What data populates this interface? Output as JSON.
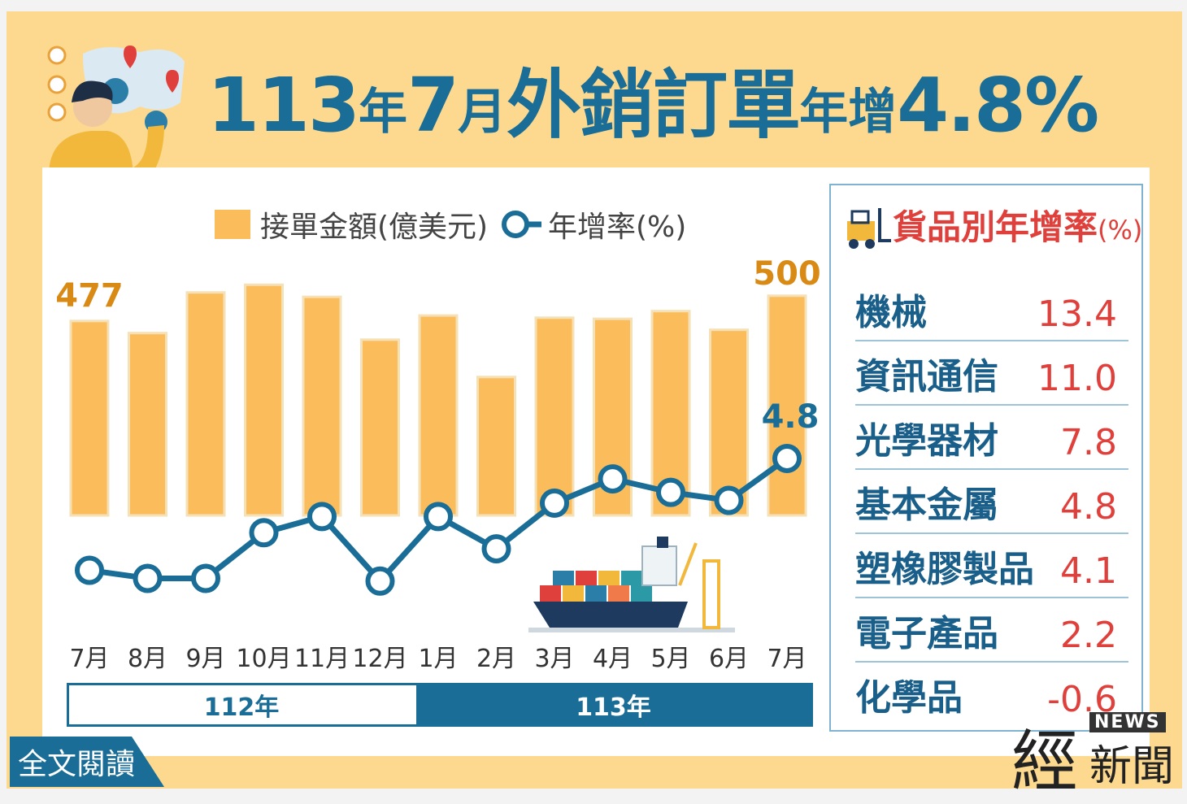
{
  "title": {
    "part1": "113",
    "part2": "年",
    "part3": "7",
    "part4": "月",
    "part5": "外銷訂單",
    "part6": "年增",
    "part7": "4.8%"
  },
  "legend": {
    "bar_label": "接單金額(億美元)",
    "line_label": "年增率(%)"
  },
  "years": {
    "first": "112年",
    "second": "113年"
  },
  "chart_data": [
    {
      "type": "bar",
      "categories": [
        "7月",
        "8月",
        "9月",
        "10月",
        "11月",
        "12月",
        "1月",
        "2月",
        "3月",
        "4月",
        "5月",
        "6月",
        "7月"
      ],
      "series": [
        {
          "name": "接單金額(億美元)",
          "values": [
            477,
            466,
            503,
            510,
            499,
            460,
            482,
            426,
            480,
            479,
            486,
            469,
            500
          ]
        },
        {
          "name": "年增率(%)",
          "values": [
            -16.0,
            -17.5,
            -17.5,
            -9.0,
            -6.0,
            -18.0,
            -6.0,
            -12.0,
            -3.5,
            1.0,
            -1.5,
            -3.0,
            4.8
          ]
        }
      ],
      "labeled_values": {
        "first_bar": "477",
        "last_bar": "500",
        "last_rate": "4.8"
      },
      "colors": {
        "bar": "#fbbd5c",
        "line": "#1a6d96"
      }
    },
    {
      "type": "table",
      "title": "貨品別年增率",
      "unit": "(%)",
      "categories": [
        "機械",
        "資訊通信",
        "光學器材",
        "基本金屬",
        "塑橡膠製品",
        "電子產品",
        "化學品"
      ],
      "values": [
        "13.4",
        "11.0",
        "7.8",
        "4.8",
        "4.1",
        "2.2",
        "-0.6"
      ],
      "colors": {
        "name": "#1a5f8a",
        "value": "#e0403b"
      }
    }
  ],
  "footer": {
    "read_more": "全文閱讀",
    "logo_main": "經",
    "logo_news": "NEWS",
    "logo_sub": "新聞"
  }
}
